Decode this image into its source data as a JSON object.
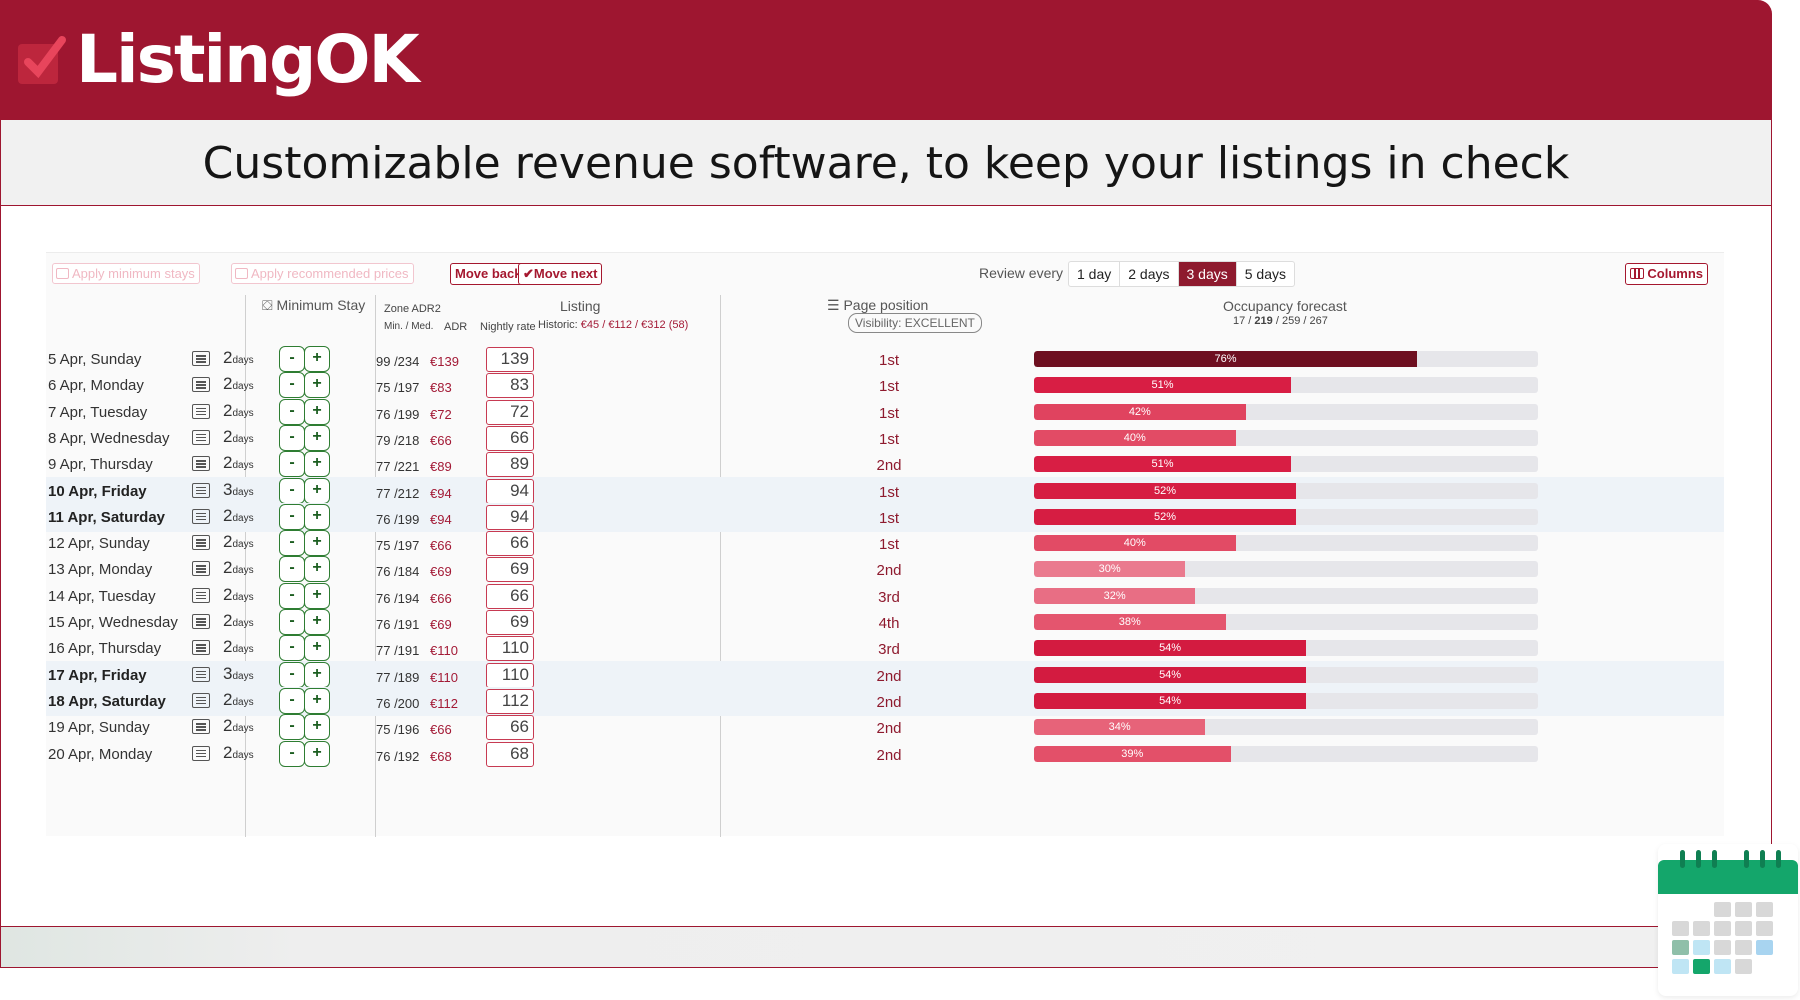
{
  "brand": {
    "name": "ListingOK",
    "color": "#9e1630",
    "tagline": "Customizable revenue software, to keep your listings in check"
  },
  "toolbar": {
    "apply_min_stays": "Apply minimum stays",
    "apply_recommended_prices": "Apply recommended prices",
    "move_back": "Move back",
    "move_next": "Move next",
    "review_every_label": "Review every",
    "review_options": [
      "1 day",
      "2 days",
      "3 days",
      "5 days"
    ],
    "review_selected": "3 days",
    "columns": "Columns"
  },
  "headers": {
    "min_stay": "Minimum Stay",
    "zone_adr": "Zone ADR2",
    "min_med": "Min. / Med.",
    "adr": "ADR",
    "listing": "Listing",
    "nightly_rate": "Nightly rate",
    "historic_label": "Historic:",
    "historic_values": "€45 / €112 / €312",
    "historic_count": "(58)",
    "page_position": "Page position",
    "visibility": "Visibility: EXCELLENT",
    "occupancy": "Occupancy forecast",
    "occ_summary_a": "17 /",
    "occ_summary_b": "219",
    "occ_summary_c": "/ 259 / 267"
  },
  "rows": [
    {
      "date": "5 Apr, Sunday",
      "weekend": false,
      "stay": "2",
      "unit": "days",
      "adr2": "99 /234",
      "adr": "€139",
      "rate": "139",
      "pos": "1st",
      "occ": 76,
      "color": "#6e0f20"
    },
    {
      "date": "6 Apr, Monday",
      "weekend": false,
      "stay": "2",
      "unit": "days",
      "adr2": "75 /197",
      "adr": "€83",
      "rate": "83",
      "pos": "1st",
      "occ": 51,
      "color": "#d81e44"
    },
    {
      "date": "7 Apr, Tuesday",
      "weekend": false,
      "stay": "2",
      "unit": "days",
      "adr2": "76 /199",
      "adr": "€72",
      "rate": "72",
      "pos": "1st",
      "occ": 42,
      "color": "#e0435f"
    },
    {
      "date": "8 Apr, Wednesday",
      "weekend": false,
      "stay": "2",
      "unit": "days",
      "adr2": "79 /218",
      "adr": "€66",
      "rate": "66",
      "pos": "1st",
      "occ": 40,
      "color": "#e24b65"
    },
    {
      "date": "9 Apr, Thursday",
      "weekend": false,
      "stay": "2",
      "unit": "days",
      "adr2": "77 /221",
      "adr": "€89",
      "rate": "89",
      "pos": "2nd",
      "occ": 51,
      "color": "#d81e44"
    },
    {
      "date": "10 Apr, Friday",
      "weekend": true,
      "stay": "3",
      "unit": "days",
      "adr2": "77 /212",
      "adr": "€94",
      "rate": "94",
      "pos": "1st",
      "occ": 52,
      "color": "#d61d42"
    },
    {
      "date": "11 Apr, Saturday",
      "weekend": true,
      "stay": "2",
      "unit": "days",
      "adr2": "76 /199",
      "adr": "€94",
      "rate": "94",
      "pos": "1st",
      "occ": 52,
      "color": "#d61d42"
    },
    {
      "date": "12 Apr, Sunday",
      "weekend": false,
      "stay": "2",
      "unit": "days",
      "adr2": "75 /197",
      "adr": "€66",
      "rate": "66",
      "pos": "1st",
      "occ": 40,
      "color": "#e24b65"
    },
    {
      "date": "13 Apr, Monday",
      "weekend": false,
      "stay": "2",
      "unit": "days",
      "adr2": "76 /184",
      "adr": "€69",
      "rate": "69",
      "pos": "2nd",
      "occ": 30,
      "color": "#ea7a8e"
    },
    {
      "date": "14 Apr, Tuesday",
      "weekend": false,
      "stay": "2",
      "unit": "days",
      "adr2": "76 /194",
      "adr": "€66",
      "rate": "66",
      "pos": "3rd",
      "occ": 32,
      "color": "#e86e84"
    },
    {
      "date": "15 Apr, Wednesday",
      "weekend": false,
      "stay": "2",
      "unit": "days",
      "adr2": "76 /191",
      "adr": "€69",
      "rate": "69",
      "pos": "4th",
      "occ": 38,
      "color": "#e4556e"
    },
    {
      "date": "16 Apr, Thursday",
      "weekend": false,
      "stay": "2",
      "unit": "days",
      "adr2": "77 /191",
      "adr": "€110",
      "rate": "110",
      "pos": "3rd",
      "occ": 54,
      "color": "#d31b40"
    },
    {
      "date": "17 Apr, Friday",
      "weekend": true,
      "stay": "3",
      "unit": "days",
      "adr2": "77 /189",
      "adr": "€110",
      "rate": "110",
      "pos": "2nd",
      "occ": 54,
      "color": "#d31b40"
    },
    {
      "date": "18 Apr, Saturday",
      "weekend": true,
      "stay": "2",
      "unit": "days",
      "adr2": "76 /200",
      "adr": "€112",
      "rate": "112",
      "pos": "2nd",
      "occ": 54,
      "color": "#d31b40"
    },
    {
      "date": "19 Apr, Sunday",
      "weekend": false,
      "stay": "2",
      "unit": "days",
      "adr2": "75 /196",
      "adr": "€66",
      "rate": "66",
      "pos": "2nd",
      "occ": 34,
      "color": "#e76379"
    },
    {
      "date": "20 Apr, Monday",
      "weekend": false,
      "stay": "2",
      "unit": "days",
      "adr2": "76 /192",
      "adr": "€68",
      "rate": "68",
      "pos": "2nd",
      "occ": 39,
      "color": "#e35069"
    }
  ],
  "stepper": {
    "minus": "-",
    "plus": "+"
  }
}
